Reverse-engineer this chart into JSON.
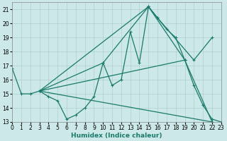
{
  "xlabel": "Humidex (Indice chaleur)",
  "bg_color": "#cce8e8",
  "grid_color": "#b0cfcf",
  "line_color": "#1a7a6a",
  "xlim": [
    0,
    23
  ],
  "ylim": [
    13,
    21.5
  ],
  "xticks": [
    0,
    1,
    2,
    3,
    4,
    5,
    6,
    7,
    8,
    9,
    10,
    11,
    12,
    13,
    14,
    15,
    16,
    17,
    18,
    19,
    20,
    21,
    22,
    23
  ],
  "yticks": [
    13,
    14,
    15,
    16,
    17,
    18,
    19,
    20,
    21
  ],
  "series1_x": [
    0,
    1,
    2,
    3,
    4,
    5,
    6,
    7,
    8,
    9,
    10,
    11,
    12,
    13,
    14,
    15,
    16,
    17,
    18,
    19,
    20,
    21,
    22,
    23
  ],
  "series1_y": [
    16.8,
    15.0,
    15.0,
    15.2,
    14.8,
    14.5,
    13.2,
    13.5,
    14.0,
    14.8,
    17.2,
    15.6,
    16.0,
    19.4,
    17.2,
    21.2,
    20.4,
    19.6,
    19.0,
    17.4,
    15.6,
    14.2,
    13.2,
    13.0
  ],
  "series2_x": [
    3,
    10,
    15,
    19
  ],
  "series2_y": [
    15.2,
    17.2,
    21.2,
    17.4
  ],
  "series3_x": [
    3,
    15,
    16,
    20,
    22
  ],
  "series3_y": [
    15.2,
    21.2,
    20.4,
    17.4,
    19.0
  ],
  "series4_x": [
    3,
    22
  ],
  "series4_y": [
    15.2,
    13.0
  ],
  "series5_x": [
    3,
    19,
    22
  ],
  "series5_y": [
    15.2,
    17.4,
    13.0
  ]
}
